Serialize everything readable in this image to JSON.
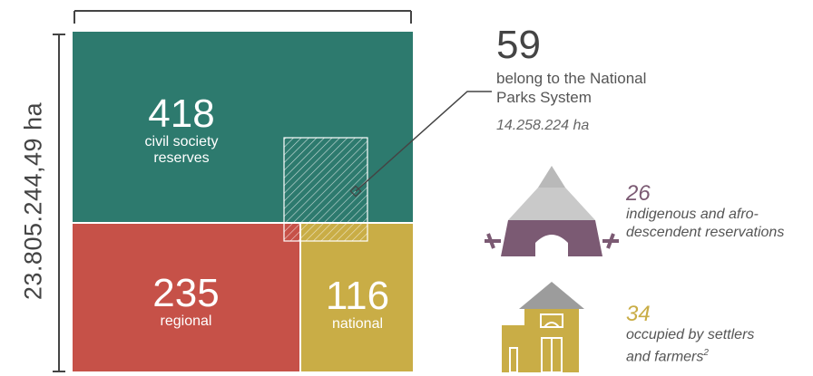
{
  "total_area": "23.805.244,49 ha",
  "colors": {
    "civil": "#2d7a6e",
    "regional": "#c65148",
    "national": "#c9ad46",
    "indigenous": "#7b5a73",
    "settlers": "#c9ad46",
    "gray_text": "#555555",
    "line": "#444444"
  },
  "blocks": {
    "civil": {
      "value": "418",
      "label_line1": "civil society",
      "label_line2": "reserves"
    },
    "regional": {
      "value": "235",
      "label": "regional"
    },
    "national": {
      "value": "116",
      "label": "national"
    }
  },
  "nps": {
    "value": "59",
    "label_line1": "belong to the National",
    "label_line2": "Parks System",
    "area": "14.258.224 ha"
  },
  "indigenous": {
    "value": "26",
    "label_line1": "indigenous and afro-",
    "label_line2": "descendent reservations",
    "icon": "tent-icon"
  },
  "settlers": {
    "value": "34",
    "label_line1": "occupied by settlers",
    "label_line2": "and farmers",
    "footnote": "2",
    "icon": "house-icon"
  }
}
